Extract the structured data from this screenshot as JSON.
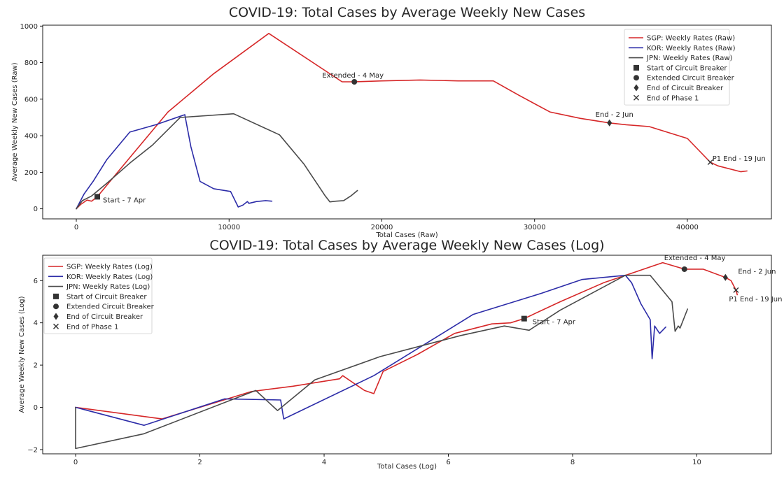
{
  "chart_data": [
    {
      "type": "line",
      "title": "COVID-19: Total Cases by Average Weekly New Cases",
      "xlabel": "Total Cases (Raw)",
      "ylabel": "Average Weekly New Cases (Raw)",
      "xlim": [
        -2200,
        45500
      ],
      "ylim": [
        -55,
        1005
      ],
      "xticks": [
        0,
        10000,
        20000,
        30000,
        40000
      ],
      "xtick_labels": [
        "0",
        "10000",
        "20000",
        "30000",
        "40000"
      ],
      "yticks": [
        0,
        200,
        400,
        600,
        800,
        1000
      ],
      "ytick_labels": [
        "0",
        "200",
        "400",
        "600",
        "800",
        "1000"
      ],
      "grid": false,
      "legend_position": "top-right",
      "series": [
        {
          "name": "SGP: Weekly Rates (Raw)",
          "color": "#d62728",
          "x": [
            0,
            300,
            700,
            1000,
            1375,
            2500,
            4000,
            6000,
            9000,
            12600,
            17400,
            18200,
            20000,
            22500,
            25000,
            27300,
            29000,
            31000,
            33000,
            34900,
            36000,
            37500,
            40000,
            41500,
            42000,
            43500,
            43900
          ],
          "y": [
            0,
            25,
            48,
            42,
            66,
            180,
            330,
            530,
            740,
            960,
            695,
            695,
            700,
            705,
            700,
            700,
            620,
            530,
            495,
            470,
            460,
            450,
            385,
            255,
            235,
            203,
            207
          ]
        },
        {
          "name": "KOR: Weekly Rates (Raw)",
          "color": "#2c2ca8",
          "x": [
            0,
            500,
            1100,
            2000,
            3500,
            5200,
            7100,
            7500,
            8100,
            9000,
            10100,
            10600,
            10900,
            11200,
            11300,
            11800,
            12400,
            12800
          ],
          "y": [
            0,
            80,
            150,
            270,
            420,
            460,
            515,
            340,
            150,
            110,
            95,
            10,
            20,
            40,
            30,
            40,
            45,
            42
          ]
        },
        {
          "name": "JPN: Weekly Rates (Raw)",
          "color": "#4a4a4a",
          "x": [
            0,
            400,
            1000,
            2000,
            3500,
            5000,
            6800,
            10300,
            13300,
            14900,
            16300,
            16600,
            17000,
            17500,
            18000,
            18400
          ],
          "y": [
            0,
            45,
            70,
            140,
            250,
            350,
            500,
            520,
            405,
            245,
            70,
            38,
            42,
            45,
            72,
            100
          ]
        }
      ],
      "markers": [
        {
          "label": "Start of Circuit Breaker",
          "marker": "square",
          "x": 1375,
          "y": 66,
          "annotation": "Start - 7 Apr"
        },
        {
          "label": "Extended Circuit Breaker",
          "marker": "circle",
          "x": 18200,
          "y": 695,
          "annotation": "Extended - 4 May"
        },
        {
          "label": "End of Circuit Breaker",
          "marker": "diamond",
          "x": 34900,
          "y": 470,
          "annotation": "End - 2 Jun"
        },
        {
          "label": "End of Phase 1",
          "marker": "x",
          "x": 41500,
          "y": 255,
          "annotation": "P1 End - 19 Jun"
        }
      ]
    },
    {
      "type": "line",
      "title": "COVID-19: Total Cases by Average Weekly New Cases (Log)",
      "xlabel": "Total Cases (Log)",
      "ylabel": "Average Weekly New Cases (Log)",
      "xlim": [
        -0.53,
        11.2
      ],
      "ylim": [
        -2.2,
        7.2
      ],
      "xticks": [
        0,
        2,
        4,
        6,
        8,
        10
      ],
      "xtick_labels": [
        "0",
        "2",
        "4",
        "6",
        "8",
        "10"
      ],
      "yticks": [
        -2,
        0,
        2,
        4,
        6
      ],
      "ytick_labels": [
        "−2",
        "0",
        "2",
        "4",
        "6"
      ],
      "grid": false,
      "legend_position": "top-left",
      "series": [
        {
          "name": "SGP: Weekly Rates (Log)",
          "color": "#d62728",
          "x": [
            0,
            1.39,
            2.83,
            3.5,
            4.25,
            4.3,
            4.65,
            4.8,
            4.95,
            5.5,
            6.1,
            6.7,
            7.0,
            7.22,
            7.8,
            8.5,
            9.0,
            9.45,
            9.8,
            10.1,
            10.46,
            10.55,
            10.63,
            10.65
          ],
          "y": [
            0,
            -0.55,
            0.75,
            1.0,
            1.35,
            1.5,
            0.8,
            0.65,
            1.7,
            2.5,
            3.5,
            3.95,
            4.0,
            4.2,
            5.0,
            5.9,
            6.4,
            6.85,
            6.54,
            6.54,
            6.15,
            6.0,
            5.55,
            5.33
          ]
        },
        {
          "name": "KOR: Weekly Rates (Log)",
          "color": "#2c2ca8",
          "x": [
            0,
            1.1,
            2.4,
            3.3,
            3.35,
            4.8,
            6.4,
            7.5,
            8.15,
            8.85,
            8.95,
            9.1,
            9.25,
            9.28,
            9.32,
            9.4,
            9.5
          ],
          "y": [
            0,
            -0.85,
            0.4,
            0.35,
            -0.55,
            1.5,
            4.4,
            5.4,
            6.05,
            6.25,
            5.9,
            4.9,
            4.15,
            2.3,
            3.85,
            3.5,
            3.8
          ]
        },
        {
          "name": "JPN: Weekly Rates (Log)",
          "color": "#4a4a4a",
          "x": [
            0,
            0,
            1.1,
            2.9,
            3.25,
            3.85,
            4.9,
            6.2,
            6.9,
            7.3,
            7.8,
            8.85,
            9.25,
            9.6,
            9.65,
            9.7,
            9.73,
            9.75,
            9.85
          ],
          "y": [
            0,
            -1.95,
            -1.25,
            0.8,
            -0.15,
            1.3,
            2.4,
            3.4,
            3.85,
            3.65,
            4.6,
            6.25,
            6.25,
            5.0,
            3.6,
            3.85,
            3.75,
            3.9,
            4.65
          ]
        }
      ],
      "markers": [
        {
          "label": "Start of Circuit Breaker",
          "marker": "square",
          "x": 7.22,
          "y": 4.2,
          "annotation": "Start - 7 Apr"
        },
        {
          "label": "Extended Circuit Breaker",
          "marker": "circle",
          "x": 9.8,
          "y": 6.54,
          "annotation": "Extended - 4 May"
        },
        {
          "label": "End of Circuit Breaker",
          "marker": "diamond",
          "x": 10.46,
          "y": 6.15,
          "annotation": "End - 2 Jun"
        },
        {
          "label": "End of Phase 1",
          "marker": "x",
          "x": 10.63,
          "y": 5.55,
          "annotation": "P1 End - 19 Jun"
        }
      ]
    }
  ]
}
